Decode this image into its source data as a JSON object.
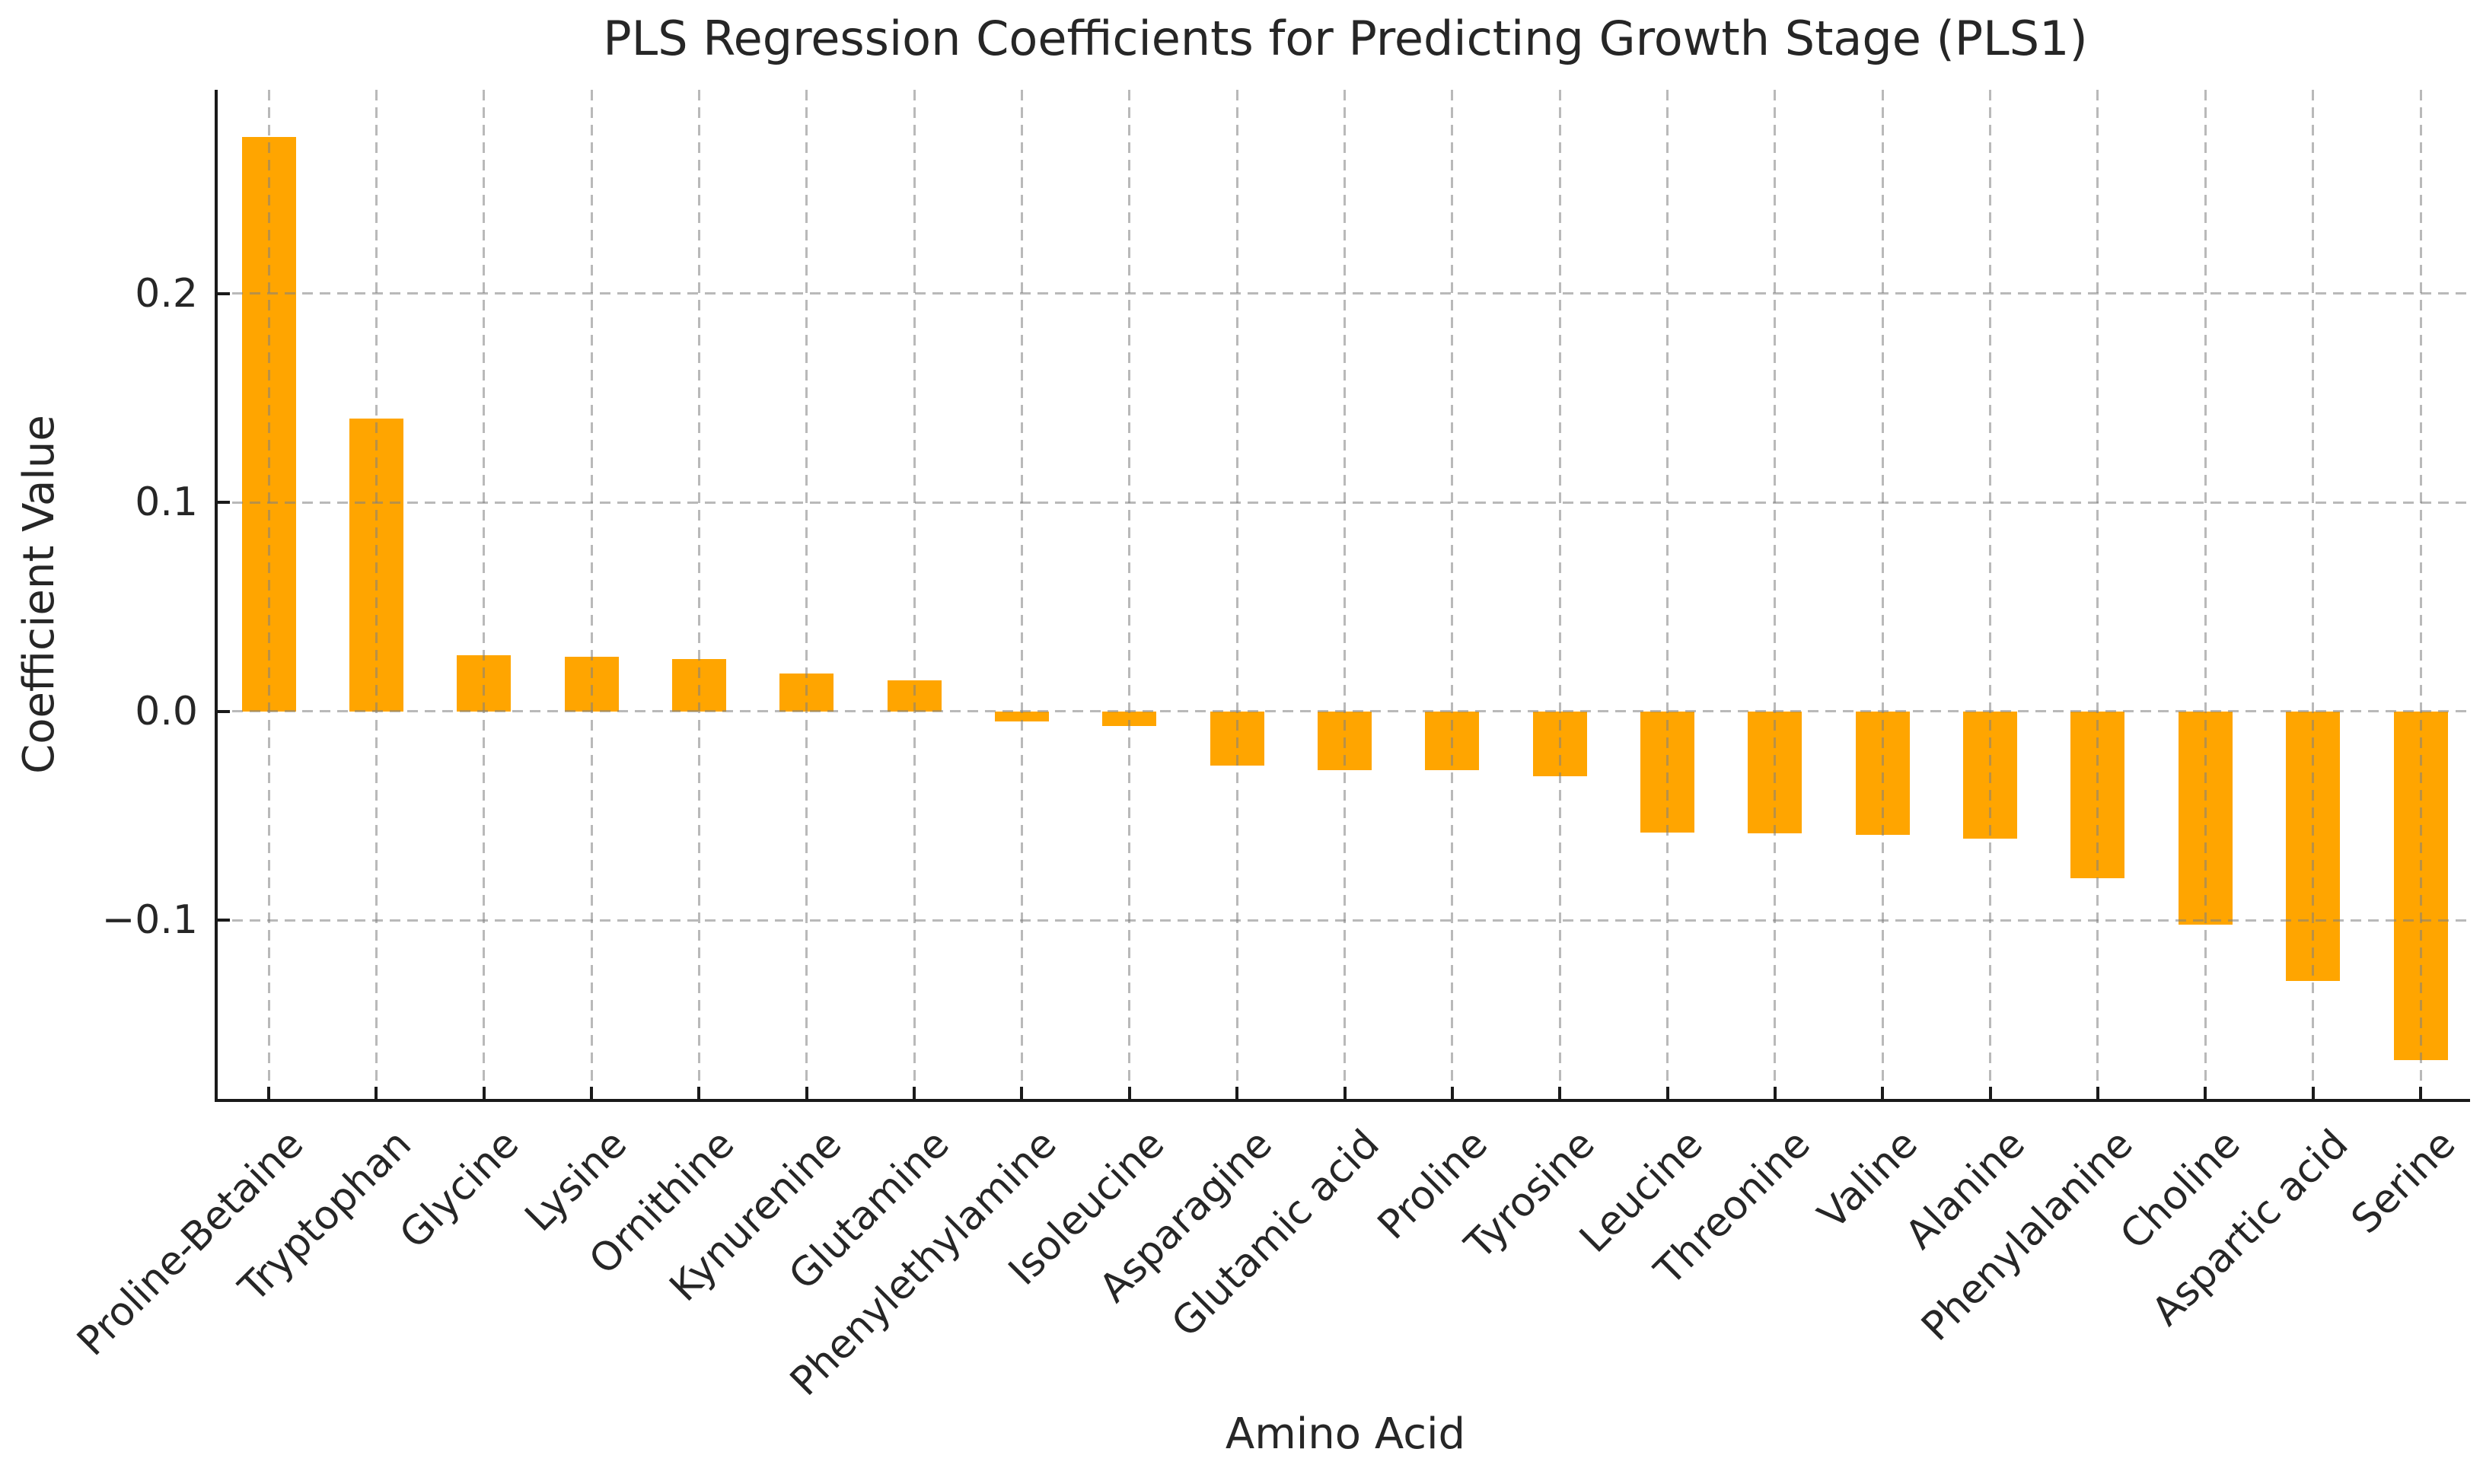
{
  "chart_data": {
    "type": "bar",
    "title": "PLS Regression Coefficients for Predicting Growth Stage (PLS1)",
    "xlabel": "Amino Acid",
    "ylabel": "Coefficient Value",
    "categories": [
      "Proline-Betaine",
      "Tryptophan",
      "Glycine",
      "Lysine",
      "Ornithine",
      "Kynurenine",
      "Glutamine",
      "Phenylethylamine",
      "Isoleucine",
      "Asparagine",
      "Glutamic acid",
      "Proline",
      "Tyrosine",
      "Leucine",
      "Threonine",
      "Valine",
      "Alanine",
      "Phenylalanine",
      "Choline",
      "Aspartic acid",
      "Serine"
    ],
    "values": [
      0.275,
      0.14,
      0.027,
      0.026,
      0.025,
      0.018,
      0.015,
      -0.005,
      -0.007,
      -0.026,
      -0.028,
      -0.028,
      -0.031,
      -0.058,
      -0.0585,
      -0.059,
      -0.061,
      -0.08,
      -0.102,
      -0.129,
      -0.167
    ],
    "yticks": [
      0.2,
      0.1,
      0.0,
      -0.1
    ],
    "ytick_labels": [
      "0.2",
      "0.1",
      "0.0",
      "−0.1"
    ],
    "ylim": [
      -0.1855,
      0.2975
    ],
    "grid": "dashed, both axes, drawn over bars",
    "legend": "none",
    "x_tick_rotation_deg": 45,
    "bar_color": "#FFA500",
    "grid_color": "#bcbcbc",
    "spine_color": "#1a1a1a",
    "text_color": "#262626"
  }
}
